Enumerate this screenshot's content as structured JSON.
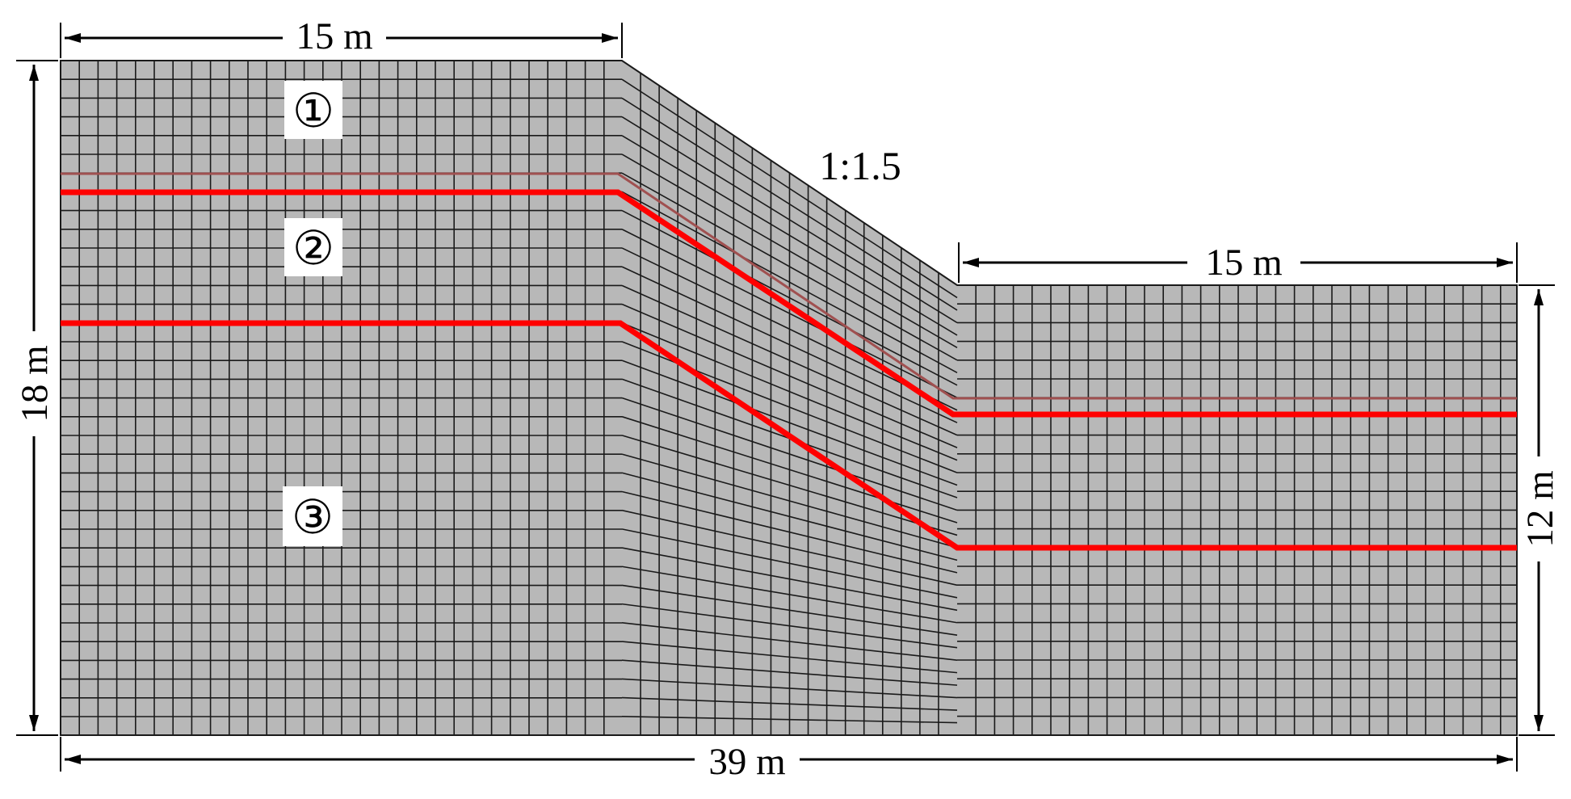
{
  "diagram": {
    "dimensions": {
      "top_left_width": "15 m",
      "right_width": "15 m",
      "total_width": "39 m",
      "left_height": "18 m",
      "right_height": "12 m"
    },
    "slope_ratio": "1:1.5",
    "layers": [
      {
        "label": "①"
      },
      {
        "label": "②"
      },
      {
        "label": "③"
      }
    ],
    "colors": {
      "mesh_fill": "#b8b8b8",
      "mesh_line": "#1a1a1a",
      "interface_line": "#ff0000",
      "thin_interface_line": "#a05050"
    }
  }
}
